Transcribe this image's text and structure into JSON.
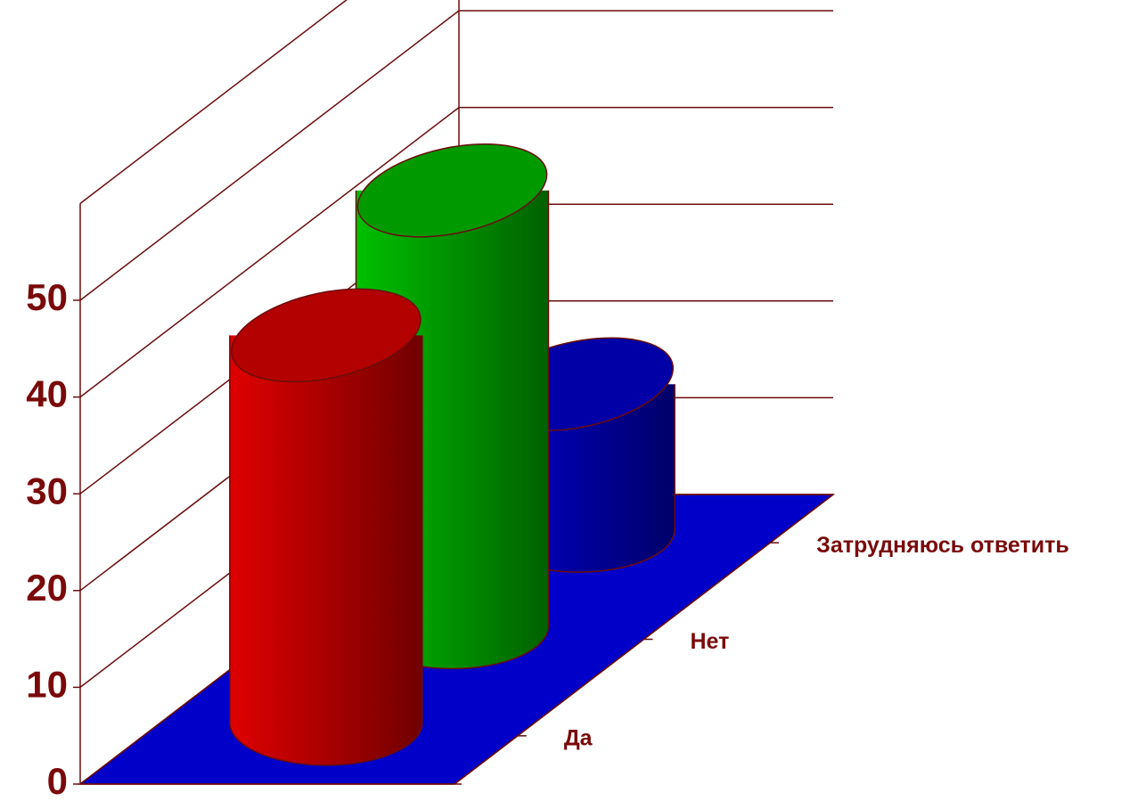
{
  "chart_data": {
    "type": "bar3d",
    "categories": [
      "Да",
      "Нет",
      "Затрудняюсь ответить"
    ],
    "values": [
      40,
      45,
      15
    ],
    "colors": [
      "#e00000",
      "#00c000",
      "#0000d0"
    ],
    "ylim": [
      0,
      60
    ],
    "yticks": [
      0,
      10,
      20,
      30,
      40,
      50
    ],
    "grid": true
  }
}
